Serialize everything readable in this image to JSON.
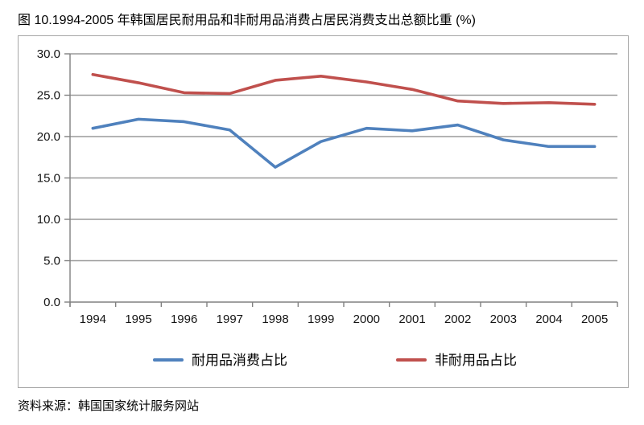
{
  "title": "图 10.1994-2005 年韩国居民耐用品和非耐用品消费占居民消费支出总额比重 (%)",
  "source": "资料来源：韩国国家统计服务网站",
  "chart_data": {
    "type": "line",
    "title": "图 10.1994-2005 年韩国居民耐用品和非耐用品消费占居民消费支出总额比重 (%)",
    "categories": [
      "1994",
      "1995",
      "1996",
      "1997",
      "1998",
      "1999",
      "2000",
      "2001",
      "2002",
      "2003",
      "2004",
      "2005"
    ],
    "series": [
      {
        "name": "耐用品消费占比",
        "color": "#4F81BD",
        "values": [
          21.0,
          22.1,
          21.8,
          20.8,
          16.3,
          19.4,
          21.0,
          20.7,
          21.4,
          19.6,
          18.8,
          18.8
        ]
      },
      {
        "name": "非耐用品占比",
        "color": "#C0504D",
        "values": [
          27.5,
          26.5,
          25.3,
          25.2,
          26.8,
          27.3,
          26.6,
          25.7,
          24.3,
          24.0,
          24.1,
          23.9
        ]
      }
    ],
    "xlabel": "",
    "ylabel": "",
    "ylim": [
      0,
      30
    ],
    "ytick_step": 5,
    "ytick_labels": [
      "0.0",
      "5.0",
      "10.0",
      "15.0",
      "20.0",
      "25.0",
      "30.0"
    ],
    "grid": true,
    "legend_position": "bottom"
  },
  "colors": {
    "series_blue": "#4F81BD",
    "series_red": "#C0504D",
    "gridline": "#9a9a9a",
    "axis": "#808080",
    "chart_border": "#a6a6a6",
    "label_text": "#141414"
  }
}
